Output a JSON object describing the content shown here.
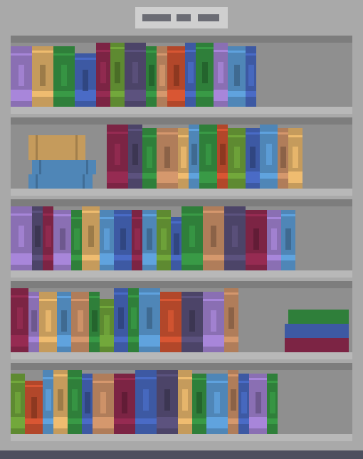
{
  "title_plate": {
    "text": "",
    "icon": "bookshelf-title-plate"
  },
  "colors": {
    "purple": "#8a6fb3",
    "tan": "#c59b5c",
    "green": "#2f7f3a",
    "blue": "#3d59a3",
    "maroon": "#7c2444",
    "olive": "#5e8a31",
    "navy": "#4c4468",
    "brown": "#b07d5a",
    "red": "#b2472a",
    "sky": "#4f86b7",
    "slate": "#5a6a7a"
  },
  "shelves": [
    {
      "books": [
        "purple",
        "tan",
        "green",
        "blue",
        "maroon",
        "olive",
        "navy",
        "green",
        "brown",
        "red",
        "blue",
        "green",
        "purple",
        "sky",
        "blue"
      ]
    },
    {
      "books": [
        "maroon",
        "navy",
        "green",
        "brown",
        "tan",
        "sky",
        "green",
        "red",
        "olive",
        "blue",
        "sky",
        "brown",
        "tan"
      ]
    },
    {
      "books": [
        "purple",
        "navy",
        "maroon",
        "purple",
        "green",
        "tan",
        "sky",
        "blue",
        "maroon",
        "sky",
        "olive",
        "blue",
        "green",
        "brown",
        "navy",
        "maroon",
        "purple",
        "sky"
      ]
    },
    {
      "books": [
        "maroon",
        "purple",
        "tan",
        "sky",
        "brown",
        "green",
        "olive",
        "blue",
        "green",
        "sky",
        "red",
        "navy",
        "purple",
        "brown"
      ]
    },
    {
      "books": [
        "olive",
        "red",
        "sky",
        "tan",
        "green",
        "blue",
        "brown",
        "maroon",
        "blue",
        "navy",
        "tan",
        "green",
        "sky",
        "brown",
        "blue",
        "purple",
        "green"
      ]
    }
  ]
}
